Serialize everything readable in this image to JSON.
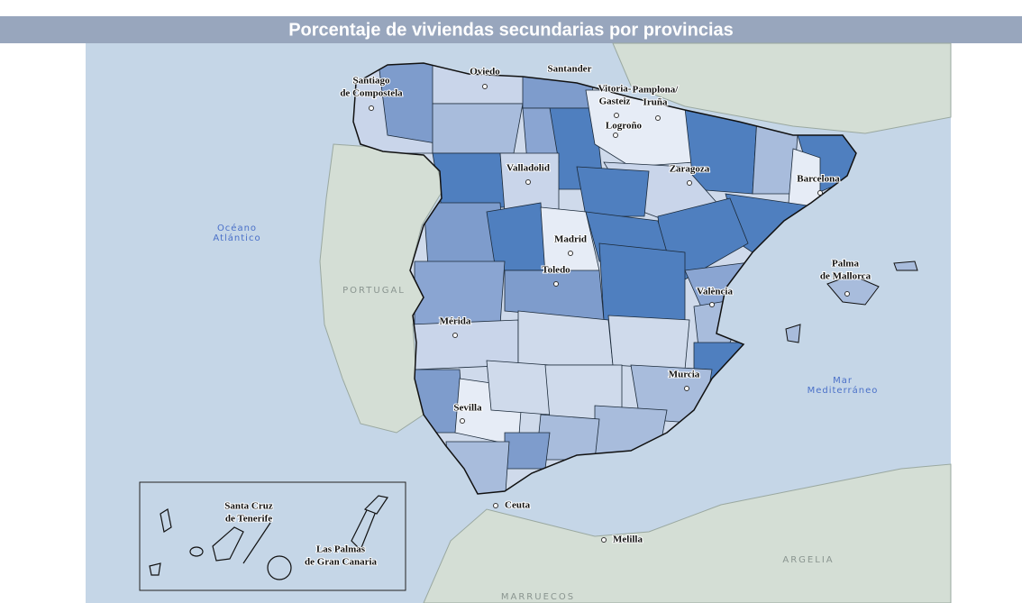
{
  "title": "Porcentaje de viviendas secundarias por provincias",
  "cities": [
    {
      "lines": [
        "Santiago",
        "de Compostela"
      ]
    },
    {
      "lines": [
        "Oviedo"
      ]
    },
    {
      "lines": [
        "Santander"
      ]
    },
    {
      "lines": [
        "Vitoria-",
        "Gasteiz"
      ]
    },
    {
      "lines": [
        "Pamplona/",
        "Iruña"
      ]
    },
    {
      "lines": [
        "Logroño"
      ]
    },
    {
      "lines": [
        "Valladolid"
      ]
    },
    {
      "lines": [
        "Zaragoza"
      ]
    },
    {
      "lines": [
        "Barcelona"
      ]
    },
    {
      "lines": [
        "Madrid"
      ]
    },
    {
      "lines": [
        "Toledo"
      ]
    },
    {
      "lines": [
        "Palma",
        "de Mallorca"
      ]
    },
    {
      "lines": [
        "València"
      ]
    },
    {
      "lines": [
        "Mérida"
      ]
    },
    {
      "lines": [
        "Murcia"
      ]
    },
    {
      "lines": [
        "Sevilla"
      ]
    },
    {
      "lines": [
        "Ceuta"
      ]
    },
    {
      "lines": [
        "Melilla"
      ]
    },
    {
      "lines": [
        "Santa Cruz",
        "de Tenerife"
      ]
    },
    {
      "lines": [
        "Las Palmas",
        "de Gran Canaria"
      ]
    }
  ],
  "seas": [
    {
      "lines": [
        "Océano",
        "Atlántico"
      ]
    },
    {
      "lines": [
        "Mar",
        "Mediterráneo"
      ]
    }
  ],
  "countries": [
    "PORTUGAL",
    "ARGELIA",
    "MARRUECOS"
  ]
}
